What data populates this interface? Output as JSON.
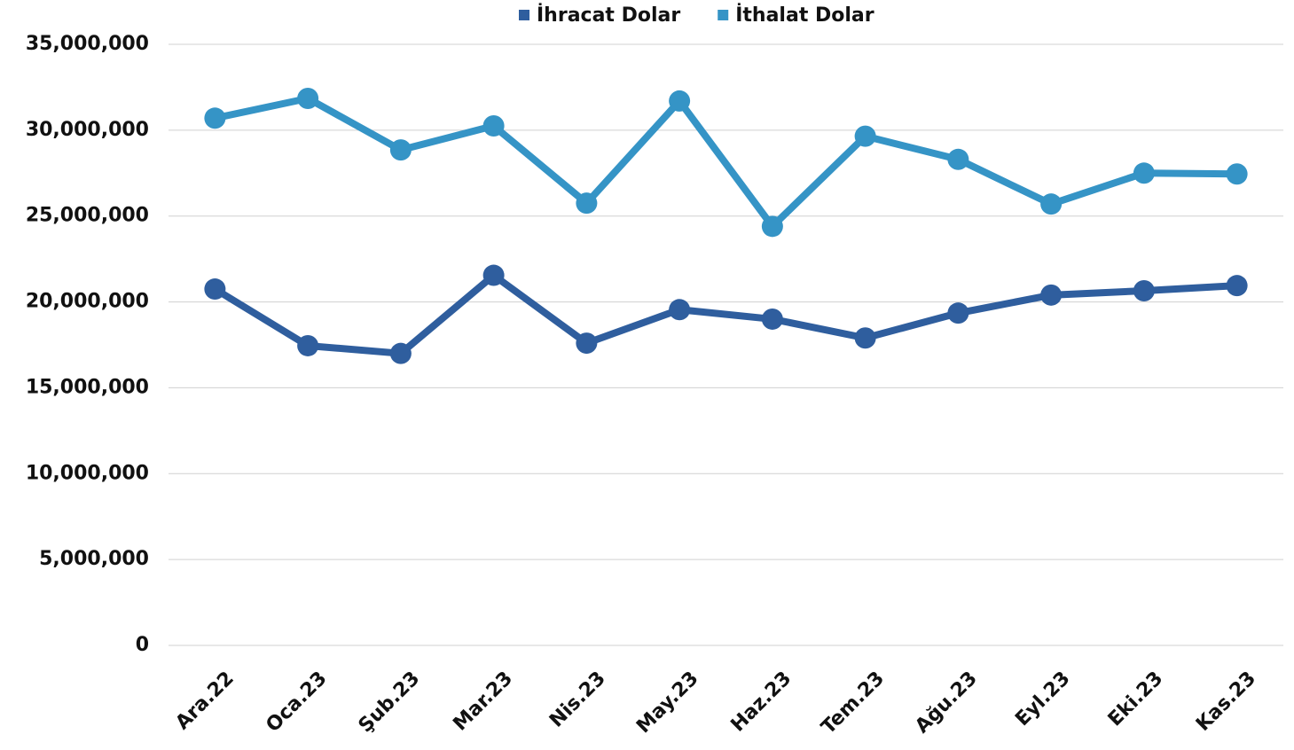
{
  "chart_data": {
    "type": "line",
    "categories": [
      "Ara.22",
      "Oca.23",
      "Şub.23",
      "Mar.23",
      "Nis.23",
      "May.23",
      "Haz.23",
      "Tem.23",
      "Ağu.23",
      "Eyl.23",
      "Eki.23",
      "Kas.23"
    ],
    "series": [
      {
        "name": "İhracat Dolar",
        "color": "#2f5e9e",
        "values": [
          20750000,
          17450000,
          17000000,
          21550000,
          17600000,
          19550000,
          19000000,
          17900000,
          19350000,
          20400000,
          20650000,
          20950000
        ]
      },
      {
        "name": "İthalat Dolar",
        "color": "#3594c6",
        "values": [
          30700000,
          31850000,
          28850000,
          30250000,
          25750000,
          31700000,
          24400000,
          29650000,
          28300000,
          25700000,
          27500000,
          27450000
        ]
      }
    ],
    "ylim": [
      0,
      35000000
    ],
    "yticks": [
      0,
      {
        "value": 5000000,
        "label": "5,000,000"
      },
      {
        "value": 10000000,
        "label": "10,000,000"
      },
      {
        "value": 15000000,
        "label": "15,000,000"
      },
      {
        "value": 20000000,
        "label": "20,000,000"
      },
      {
        "value": 25000000,
        "label": "25,000,000"
      },
      {
        "value": 30000000,
        "label": "30,000,000"
      },
      {
        "value": 35000000,
        "label": "35,000,000"
      }
    ],
    "grid": true,
    "legend": "top"
  }
}
